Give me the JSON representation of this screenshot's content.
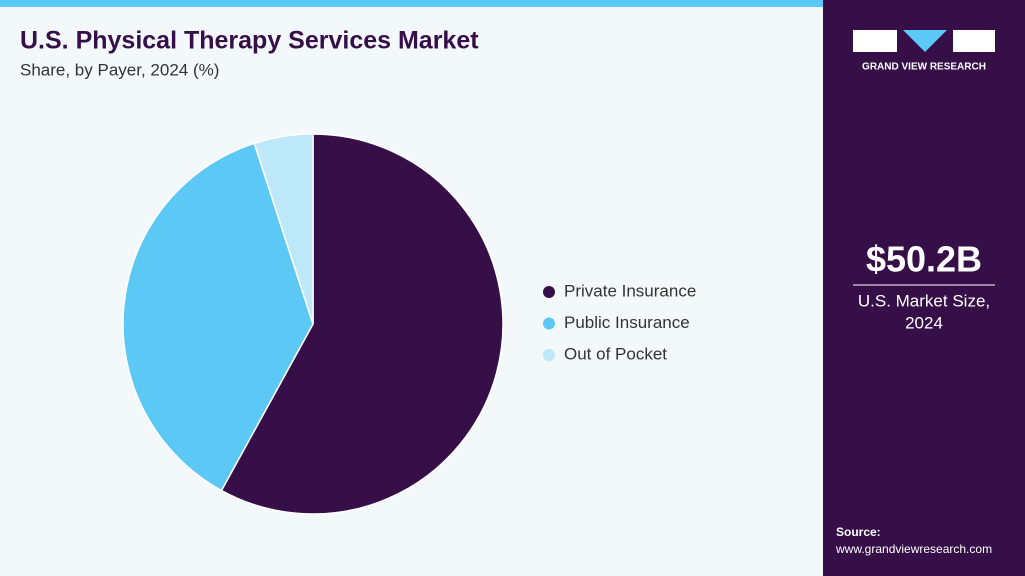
{
  "chart_data": {
    "type": "pie",
    "title": "U.S. Physical Therapy Services Market",
    "subtitle": "Share, by Payer, 2024 (%)",
    "categories": [
      "Private Insurance",
      "Public Insurance",
      "Out of Pocket"
    ],
    "values": [
      58,
      37,
      5
    ],
    "colors": [
      "#370f48",
      "#5bc8f5",
      "#bde8f9"
    ],
    "legend": "right"
  },
  "sidebar": {
    "logo_text": "GRAND VIEW RESEARCH",
    "market_size": "$50.2B",
    "market_label": [
      "U.S. Market Size,",
      "2024"
    ],
    "source_label": "Source:",
    "source_url": "www.grandviewresearch.com"
  }
}
